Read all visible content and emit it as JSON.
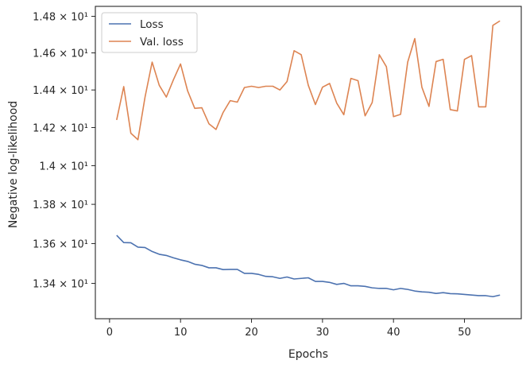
{
  "chart_data": {
    "type": "line",
    "title": "",
    "xlabel": "Epochs",
    "ylabel": "Negative log-likelihood",
    "xlim": [
      -2,
      58
    ],
    "ylim": [
      13.225,
      14.855
    ],
    "log_y": true,
    "grid": false,
    "legend_position": "top-left",
    "x_ticks": [
      0,
      10,
      20,
      30,
      40,
      50
    ],
    "x_tick_labels": [
      "0",
      "10",
      "20",
      "30",
      "40",
      "50"
    ],
    "y_ticks": [
      13.4,
      13.6,
      13.8,
      14.0,
      14.2,
      14.4,
      14.6,
      14.8
    ],
    "y_tick_labels": [
      "1.34 × 10¹",
      "1.36 × 10¹",
      "1.38 × 10¹",
      "1.4 × 10¹",
      "1.42 × 10¹",
      "1.44 × 10¹",
      "1.46 × 10¹",
      "1.48 × 10¹"
    ],
    "x": [
      1,
      2,
      3,
      4,
      5,
      6,
      7,
      8,
      9,
      10,
      11,
      12,
      13,
      14,
      15,
      16,
      17,
      18,
      19,
      20,
      21,
      22,
      23,
      24,
      25,
      26,
      27,
      28,
      29,
      30,
      31,
      32,
      33,
      34,
      35,
      36,
      37,
      38,
      39,
      40,
      41,
      42,
      43,
      44,
      45,
      46,
      47,
      48,
      49,
      50,
      51,
      52,
      53,
      54,
      55
    ],
    "series": [
      {
        "name": "Loss",
        "color": "#4c72b0",
        "values": [
          13.642,
          13.605,
          13.604,
          13.582,
          13.58,
          13.56,
          13.546,
          13.54,
          13.528,
          13.518,
          13.51,
          13.496,
          13.49,
          13.478,
          13.478,
          13.469,
          13.47,
          13.47,
          13.45,
          13.45,
          13.445,
          13.435,
          13.433,
          13.425,
          13.432,
          13.422,
          13.425,
          13.428,
          13.41,
          13.41,
          13.405,
          13.395,
          13.4,
          13.388,
          13.388,
          13.385,
          13.378,
          13.375,
          13.375,
          13.368,
          13.375,
          13.37,
          13.362,
          13.358,
          13.356,
          13.35,
          13.354,
          13.349,
          13.348,
          13.345,
          13.342,
          13.339,
          13.339,
          13.334,
          13.342
        ]
      },
      {
        "name": "Val. loss",
        "color": "#dd8452",
        "values": [
          14.24,
          14.418,
          14.17,
          14.136,
          14.362,
          14.55,
          14.425,
          14.362,
          14.455,
          14.54,
          14.395,
          14.302,
          14.305,
          14.22,
          14.19,
          14.28,
          14.343,
          14.335,
          14.413,
          14.42,
          14.413,
          14.42,
          14.42,
          14.4,
          14.445,
          14.612,
          14.59,
          14.425,
          14.322,
          14.415,
          14.435,
          14.33,
          14.268,
          14.462,
          14.45,
          14.262,
          14.333,
          14.59,
          14.525,
          14.258,
          14.27,
          14.55,
          14.678,
          14.415,
          14.312,
          14.553,
          14.565,
          14.295,
          14.288,
          14.565,
          14.585,
          14.31,
          14.31,
          14.75,
          14.775
        ]
      }
    ]
  }
}
